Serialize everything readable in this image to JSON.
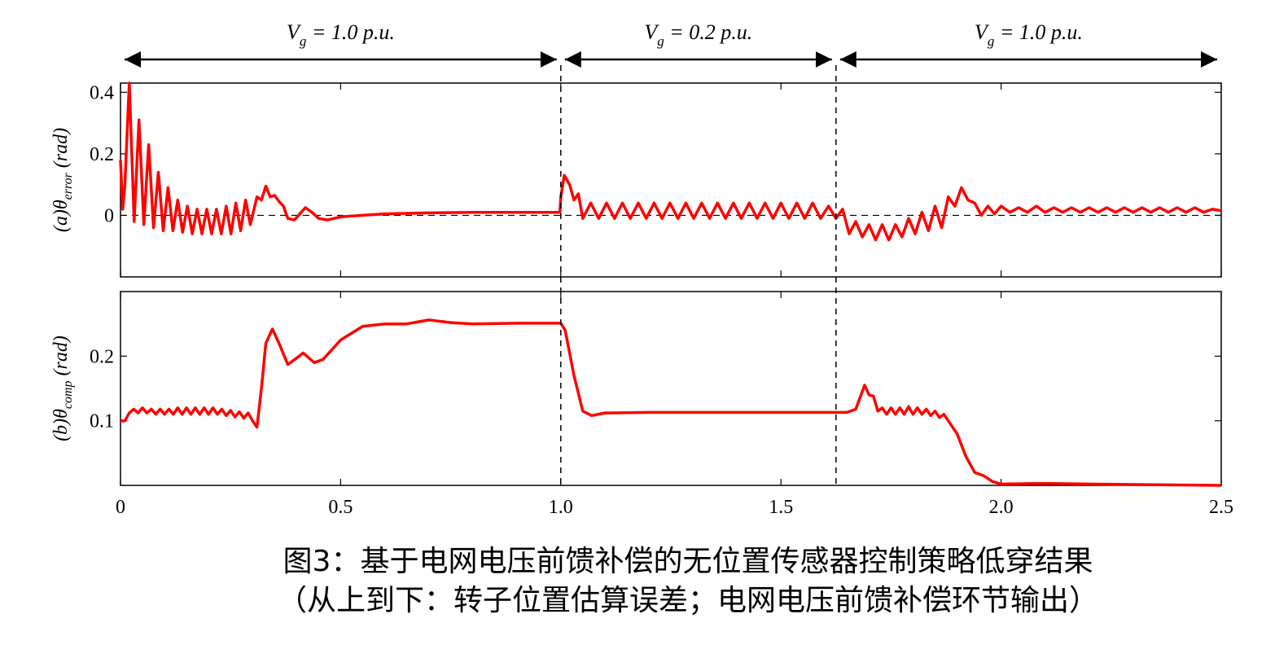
{
  "chart_data": [
    {
      "type": "line",
      "ylabel": {
        "prefix": "(a)θ",
        "subscript": "error",
        "suffix": " (rad)"
      },
      "segments": [
        {
          "symbol": "V",
          "subscript": "g",
          "text": " = 1.0 p.u.",
          "start": 0,
          "end": 1.0
        },
        {
          "symbol": "V",
          "subscript": "g",
          "text": " = 0.2 p.u.",
          "start": 1.0,
          "end": 1.625
        },
        {
          "symbol": "V",
          "subscript": "g",
          "text": " = 1.0 p.u.",
          "start": 1.625,
          "end": 2.5
        }
      ],
      "events": [
        1.0,
        1.625
      ],
      "hline": 0,
      "color": "#ff0000",
      "xlim": [
        0,
        2.5
      ],
      "ylim": [
        -0.2,
        0.43
      ],
      "yticks": [
        0,
        0.2,
        0.4
      ],
      "x": [
        0,
        0.005,
        0.01,
        0.02,
        0.031,
        0.042,
        0.053,
        0.064,
        0.075,
        0.086,
        0.097,
        0.108,
        0.119,
        0.13,
        0.141,
        0.152,
        0.163,
        0.174,
        0.185,
        0.196,
        0.207,
        0.218,
        0.229,
        0.24,
        0.251,
        0.262,
        0.273,
        0.284,
        0.295,
        0.31,
        0.32,
        0.33,
        0.34,
        0.35,
        0.36,
        0.37,
        0.38,
        0.395,
        0.42,
        0.435,
        0.45,
        0.47,
        0.5,
        0.55,
        0.6,
        0.7,
        0.8,
        0.9,
        0.998,
        1.0,
        1.008,
        1.02,
        1.03,
        1.04,
        1.05,
        1.068,
        1.086,
        1.104,
        1.122,
        1.14,
        1.158,
        1.176,
        1.194,
        1.212,
        1.23,
        1.248,
        1.266,
        1.284,
        1.302,
        1.32,
        1.338,
        1.356,
        1.374,
        1.392,
        1.41,
        1.428,
        1.446,
        1.464,
        1.482,
        1.5,
        1.518,
        1.536,
        1.554,
        1.572,
        1.59,
        1.608,
        1.625,
        1.64,
        1.655,
        1.67,
        1.685,
        1.7,
        1.715,
        1.73,
        1.745,
        1.76,
        1.775,
        1.79,
        1.805,
        1.82,
        1.835,
        1.85,
        1.865,
        1.88,
        1.895,
        1.91,
        1.925,
        1.94,
        1.955,
        1.97,
        1.985,
        2.0,
        2.02,
        2.04,
        2.06,
        2.08,
        2.1,
        2.12,
        2.14,
        2.16,
        2.18,
        2.2,
        2.22,
        2.24,
        2.26,
        2.28,
        2.3,
        2.32,
        2.34,
        2.36,
        2.38,
        2.4,
        2.42,
        2.44,
        2.46,
        2.48,
        2.5
      ],
      "values": [
        0.18,
        0.02,
        0.1,
        0.43,
        -0.02,
        0.31,
        -0.03,
        0.23,
        -0.04,
        0.14,
        -0.05,
        0.09,
        -0.05,
        0.05,
        -0.055,
        0.03,
        -0.06,
        0.02,
        -0.06,
        0.02,
        -0.06,
        0.02,
        -0.06,
        0.03,
        -0.06,
        0.04,
        -0.05,
        0.05,
        -0.03,
        0.06,
        0.05,
        0.095,
        0.06,
        0.065,
        0.045,
        0.03,
        -0.01,
        -0.015,
        0.025,
        0.01,
        -0.01,
        -0.015,
        -0.005,
        0.0,
        0.005,
        0.008,
        0.01,
        0.01,
        0.01,
        0.06,
        0.13,
        0.1,
        0.05,
        0.07,
        -0.01,
        0.04,
        -0.01,
        0.04,
        -0.01,
        0.04,
        -0.01,
        0.04,
        -0.01,
        0.04,
        -0.01,
        0.04,
        -0.01,
        0.04,
        -0.01,
        0.04,
        -0.01,
        0.04,
        -0.01,
        0.04,
        -0.01,
        0.04,
        -0.01,
        0.04,
        -0.01,
        0.04,
        -0.01,
        0.04,
        -0.01,
        0.04,
        -0.01,
        0.03,
        -0.01,
        0.02,
        -0.06,
        -0.02,
        -0.07,
        -0.03,
        -0.08,
        -0.03,
        -0.08,
        -0.03,
        -0.07,
        -0.01,
        -0.06,
        0.01,
        -0.05,
        0.03,
        -0.04,
        0.06,
        0.03,
        0.09,
        0.05,
        0.04,
        0.0,
        0.03,
        0.005,
        0.03,
        0.01,
        0.025,
        0.01,
        0.03,
        0.01,
        0.025,
        0.01,
        0.025,
        0.01,
        0.025,
        0.01,
        0.025,
        0.01,
        0.025,
        0.01,
        0.025,
        0.01,
        0.025,
        0.01,
        0.025,
        0.01,
        0.025,
        0.01,
        0.02,
        0.015
      ]
    },
    {
      "type": "line",
      "ylabel": {
        "prefix": "(b)θ",
        "subscript": "comp",
        "suffix": " (rad)"
      },
      "color": "#ff0000",
      "xlim": [
        0,
        2.5
      ],
      "ylim": [
        0,
        0.3
      ],
      "xticks": [
        0,
        0.5,
        {
          "value": 1,
          "label": "1.0"
        },
        1.5,
        {
          "value": 2,
          "label": "2.0"
        },
        2.5
      ],
      "yticks": [
        0.1,
        0.2
      ],
      "x": [
        0,
        0.01,
        0.02,
        0.03,
        0.04,
        0.05,
        0.06,
        0.07,
        0.08,
        0.09,
        0.1,
        0.11,
        0.12,
        0.13,
        0.14,
        0.15,
        0.16,
        0.17,
        0.18,
        0.19,
        0.2,
        0.21,
        0.22,
        0.23,
        0.24,
        0.25,
        0.26,
        0.27,
        0.28,
        0.29,
        0.3,
        0.31,
        0.32,
        0.33,
        0.345,
        0.36,
        0.38,
        0.4,
        0.415,
        0.44,
        0.46,
        0.5,
        0.55,
        0.6,
        0.65,
        0.7,
        0.75,
        0.8,
        0.9,
        1.0,
        1.01,
        1.03,
        1.05,
        1.07,
        1.1,
        1.2,
        1.4,
        1.6,
        1.65,
        1.67,
        1.69,
        1.7,
        1.71,
        1.72,
        1.73,
        1.74,
        1.75,
        1.76,
        1.77,
        1.78,
        1.79,
        1.8,
        1.81,
        1.82,
        1.83,
        1.84,
        1.85,
        1.86,
        1.87,
        1.88,
        1.9,
        1.92,
        1.94,
        1.96,
        1.98,
        2.0,
        2.1,
        2.2,
        2.5
      ],
      "values": [
        0.1,
        0.1,
        0.112,
        0.118,
        0.112,
        0.12,
        0.112,
        0.118,
        0.11,
        0.118,
        0.11,
        0.118,
        0.11,
        0.12,
        0.11,
        0.12,
        0.11,
        0.12,
        0.11,
        0.12,
        0.11,
        0.12,
        0.11,
        0.118,
        0.108,
        0.116,
        0.106,
        0.114,
        0.104,
        0.112,
        0.1,
        0.09,
        0.15,
        0.22,
        0.242,
        0.22,
        0.187,
        0.197,
        0.205,
        0.19,
        0.195,
        0.225,
        0.246,
        0.25,
        0.25,
        0.256,
        0.252,
        0.25,
        0.251,
        0.251,
        0.24,
        0.17,
        0.115,
        0.108,
        0.112,
        0.113,
        0.113,
        0.113,
        0.113,
        0.118,
        0.155,
        0.14,
        0.138,
        0.115,
        0.12,
        0.11,
        0.12,
        0.11,
        0.12,
        0.11,
        0.122,
        0.11,
        0.12,
        0.11,
        0.118,
        0.108,
        0.115,
        0.105,
        0.11,
        0.1,
        0.08,
        0.045,
        0.02,
        0.015,
        0.006,
        0.002,
        0.003,
        0.002,
        0.0
      ]
    }
  ],
  "caption": [
    "图3：基于电网电压前馈补偿的无位置传感器控制策略低穿结果",
    "（从上到下：转子位置估算误差；电网电压前馈补偿环节输出）"
  ]
}
